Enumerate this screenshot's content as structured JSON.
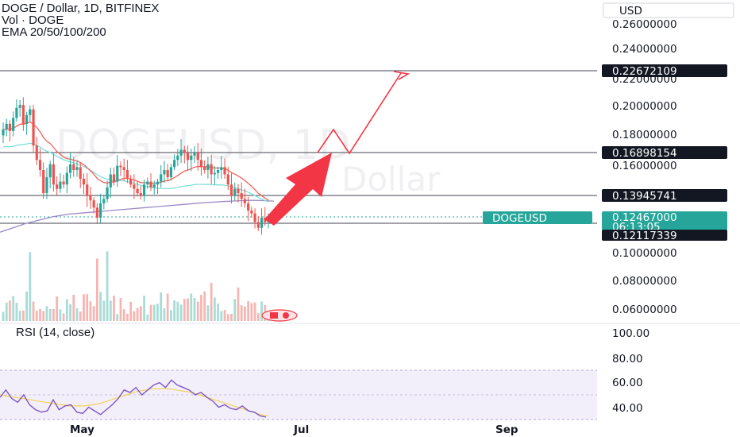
{
  "header": {
    "title": "DOGE / Dollar, 1D, BITFINEX",
    "volume_label": "Vol · DOGE",
    "ema_label": "EMA 20/50/100/200",
    "currency": "USD"
  },
  "watermark": {
    "symbol": "DOGEUSD, 1D",
    "name": "Dollar"
  },
  "price_axis": {
    "ticks": [
      "0.26000000",
      "0.24000000",
      "0.22000000",
      "0.20000000",
      "0.18000000",
      "0.16000000",
      "0.10000000",
      "0.08000000",
      "0.06000000"
    ]
  },
  "price_tags": {
    "line_1": "0.22672109",
    "line_2": "0.16898154",
    "line_3": "0.13945741",
    "current_symbol": "DOGEUSD",
    "current_price": "0.12467000",
    "countdown": "06:13:05",
    "line_4": "0.12117339"
  },
  "rsi": {
    "label": "RSI (14, close)",
    "ticks": [
      "100.00",
      "80.00",
      "60.00",
      "40.00"
    ]
  },
  "time_axis": {
    "labels": [
      "May",
      "Jul",
      "Sep"
    ]
  },
  "colors": {
    "up": "#26a69a",
    "down": "#ef5350",
    "ema20": "#f0625b",
    "ema50": "#7fe0d8",
    "ema200": "#9c89c7",
    "rsi": "#7e57c2",
    "rsi_ma": "#f2d15a",
    "arrow": "#f23645"
  },
  "chart_data": {
    "type": "candlestick",
    "title": "DOGE / Dollar, 1D, BITFINEX",
    "ylim": [
      0.05,
      0.27
    ],
    "horizontal_levels": [
      0.22672109,
      0.16898154,
      0.13945741,
      0.12117339
    ],
    "current_price": 0.12467,
    "closes": [
      0.186,
      0.19,
      0.185,
      0.194,
      0.201,
      0.203,
      0.19,
      0.196,
      0.2,
      0.175,
      0.165,
      0.158,
      0.142,
      0.153,
      0.162,
      0.148,
      0.145,
      0.15,
      0.148,
      0.156,
      0.162,
      0.158,
      0.16,
      0.152,
      0.148,
      0.14,
      0.137,
      0.132,
      0.125,
      0.135,
      0.138,
      0.146,
      0.155,
      0.15,
      0.161,
      0.16,
      0.158,
      0.152,
      0.148,
      0.145,
      0.142,
      0.14,
      0.148,
      0.15,
      0.146,
      0.148,
      0.15,
      0.155,
      0.158,
      0.153,
      0.16,
      0.165,
      0.168,
      0.172,
      0.17,
      0.165,
      0.168,
      0.17,
      0.165,
      0.16,
      0.158,
      0.162,
      0.155,
      0.156,
      0.158,
      0.16,
      0.155,
      0.148,
      0.14,
      0.145,
      0.142,
      0.138,
      0.135,
      0.13,
      0.128,
      0.122,
      0.118,
      0.125,
      0.122,
      0.12467
    ],
    "ema200": [
      0.115,
      0.117,
      0.119,
      0.121,
      0.1225,
      0.124,
      0.1255,
      0.1265,
      0.1275,
      0.128,
      0.1285,
      0.129,
      0.1295,
      0.13,
      0.1305,
      0.131,
      0.1315,
      0.132,
      0.1325,
      0.133,
      0.1335,
      0.134,
      0.1345,
      0.135,
      0.1355,
      0.1358,
      0.1362,
      0.1365,
      0.1368,
      0.137,
      0.137,
      0.1368,
      0.1365
    ],
    "rsi_ylim": [
      30,
      110
    ],
    "rsi_band": [
      30,
      70
    ],
    "rsi": [
      48,
      54,
      47,
      44,
      50,
      42,
      38,
      36,
      37,
      46,
      38,
      41,
      42,
      36,
      35,
      40,
      37,
      34,
      38,
      42,
      47,
      54,
      52,
      56,
      50,
      54,
      58,
      60,
      56,
      62,
      58,
      56,
      54,
      50,
      52,
      48,
      45,
      40,
      42,
      39,
      38,
      41,
      37,
      36,
      33,
      32
    ],
    "rsi_ma": [
      50,
      49,
      48,
      47,
      46,
      45,
      44,
      43,
      42,
      41,
      41,
      41,
      42,
      43,
      45,
      47,
      49,
      51,
      53,
      54,
      55,
      55,
      55,
      54,
      53,
      52,
      50,
      48,
      46,
      44,
      42,
      40,
      38,
      36,
      34,
      33
    ]
  }
}
